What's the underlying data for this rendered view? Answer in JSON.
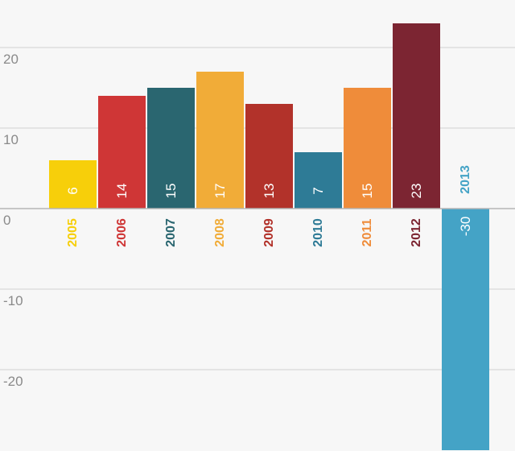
{
  "chart_data": {
    "type": "bar",
    "categories": [
      "2005",
      "2006",
      "2007",
      "2008",
      "2009",
      "2010",
      "2011",
      "2012",
      "2013"
    ],
    "values": [
      6,
      14,
      15,
      17,
      13,
      7,
      15,
      23,
      -30
    ],
    "value_labels": [
      "6",
      "14",
      "15",
      "17",
      "13",
      "7",
      "15",
      "23",
      "-30"
    ],
    "colors": [
      "#f7cf0a",
      "#cf3636",
      "#2a6670",
      "#f1ac38",
      "#b2322a",
      "#2e7b96",
      "#ef8c3a",
      "#7c2532",
      "#44a3c6"
    ],
    "ylim": [
      -30,
      23
    ],
    "yticks": [
      20,
      10,
      0,
      -10,
      -20
    ],
    "ytick_labels": [
      "20",
      "10",
      "0",
      "-10",
      "-20"
    ],
    "grid": true,
    "title": "",
    "xlabel": "",
    "ylabel": ""
  }
}
